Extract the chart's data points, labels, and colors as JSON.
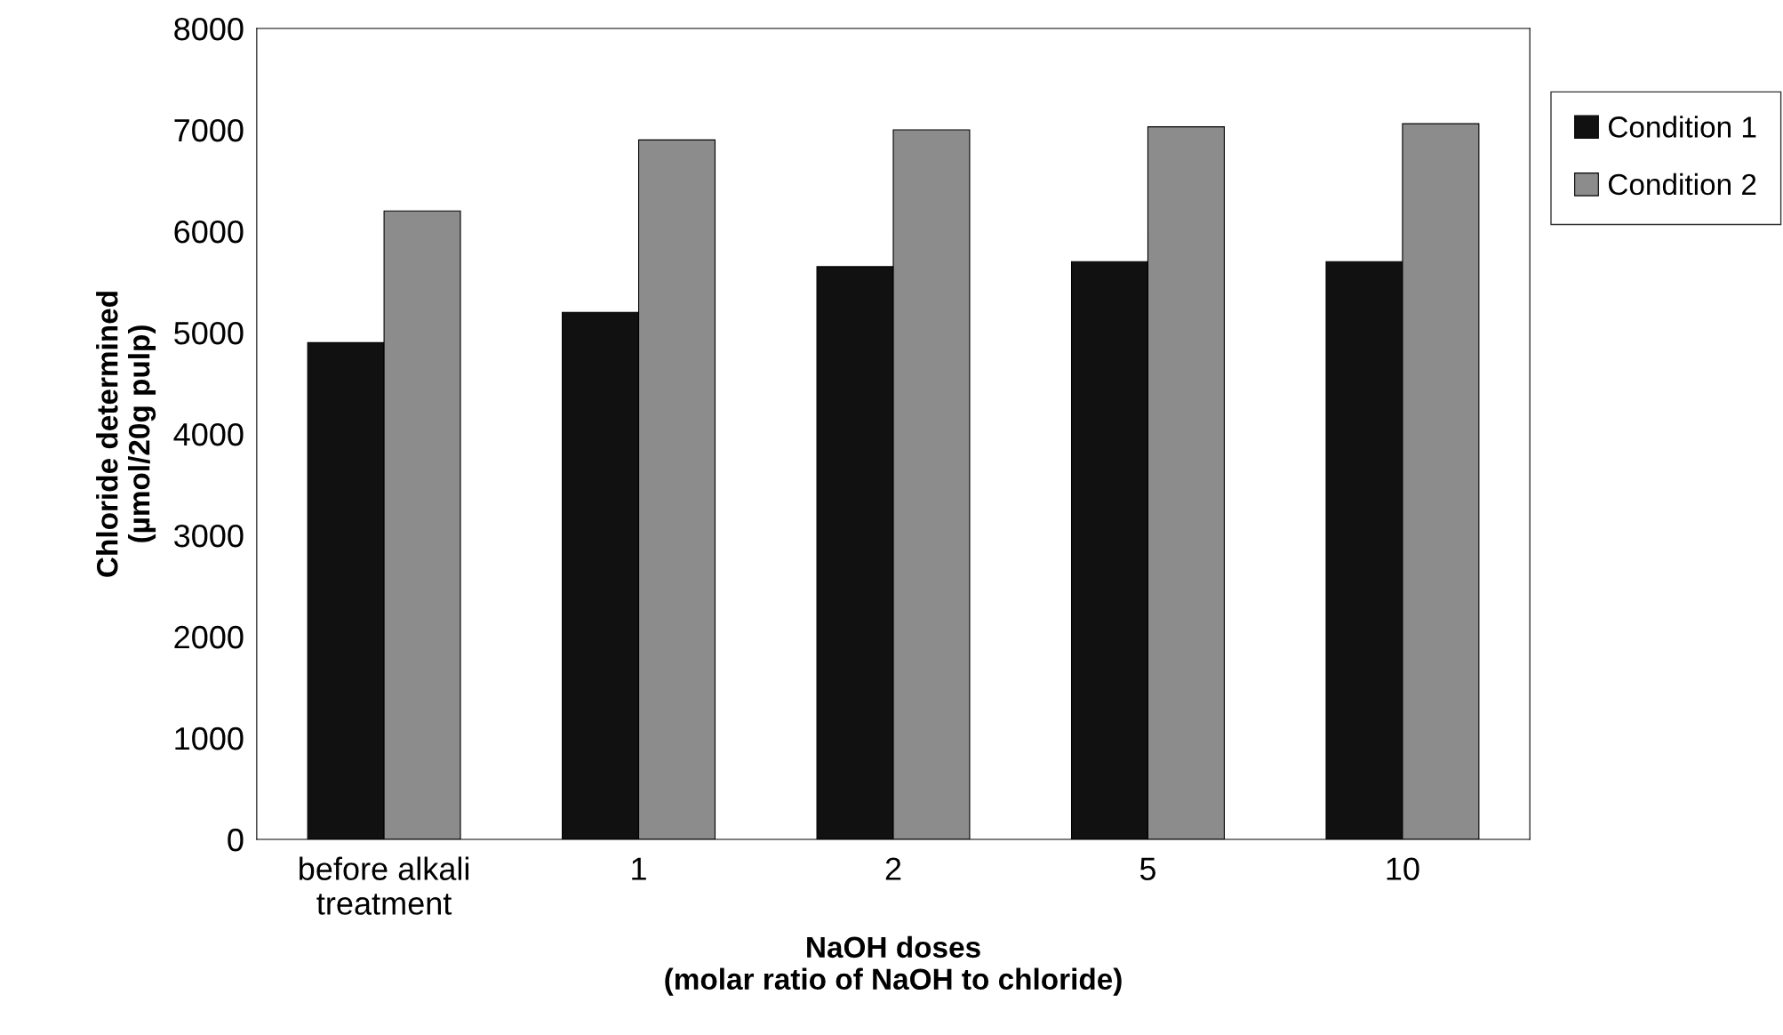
{
  "chart_data": {
    "type": "bar",
    "categories": [
      "before alkali\ntreatment",
      "1",
      "2",
      "5",
      "10"
    ],
    "series": [
      {
        "name": "Condition 1",
        "color": "#111111",
        "values": [
          4900,
          5200,
          5650,
          5700,
          5700
        ]
      },
      {
        "name": "Condition 2",
        "color": "#8c8c8c",
        "values": [
          6200,
          6900,
          7000,
          7030,
          7060
        ]
      }
    ],
    "xlabel": "NaOH doses\n(molar ratio of NaOH to chloride)",
    "ylabel": "Chloride determined\n(µmol/20g pulp)",
    "ylim": [
      0,
      8000
    ],
    "yticks": [
      0,
      1000,
      2000,
      3000,
      4000,
      5000,
      6000,
      7000,
      8000
    ],
    "grid": false,
    "legend": "right"
  }
}
